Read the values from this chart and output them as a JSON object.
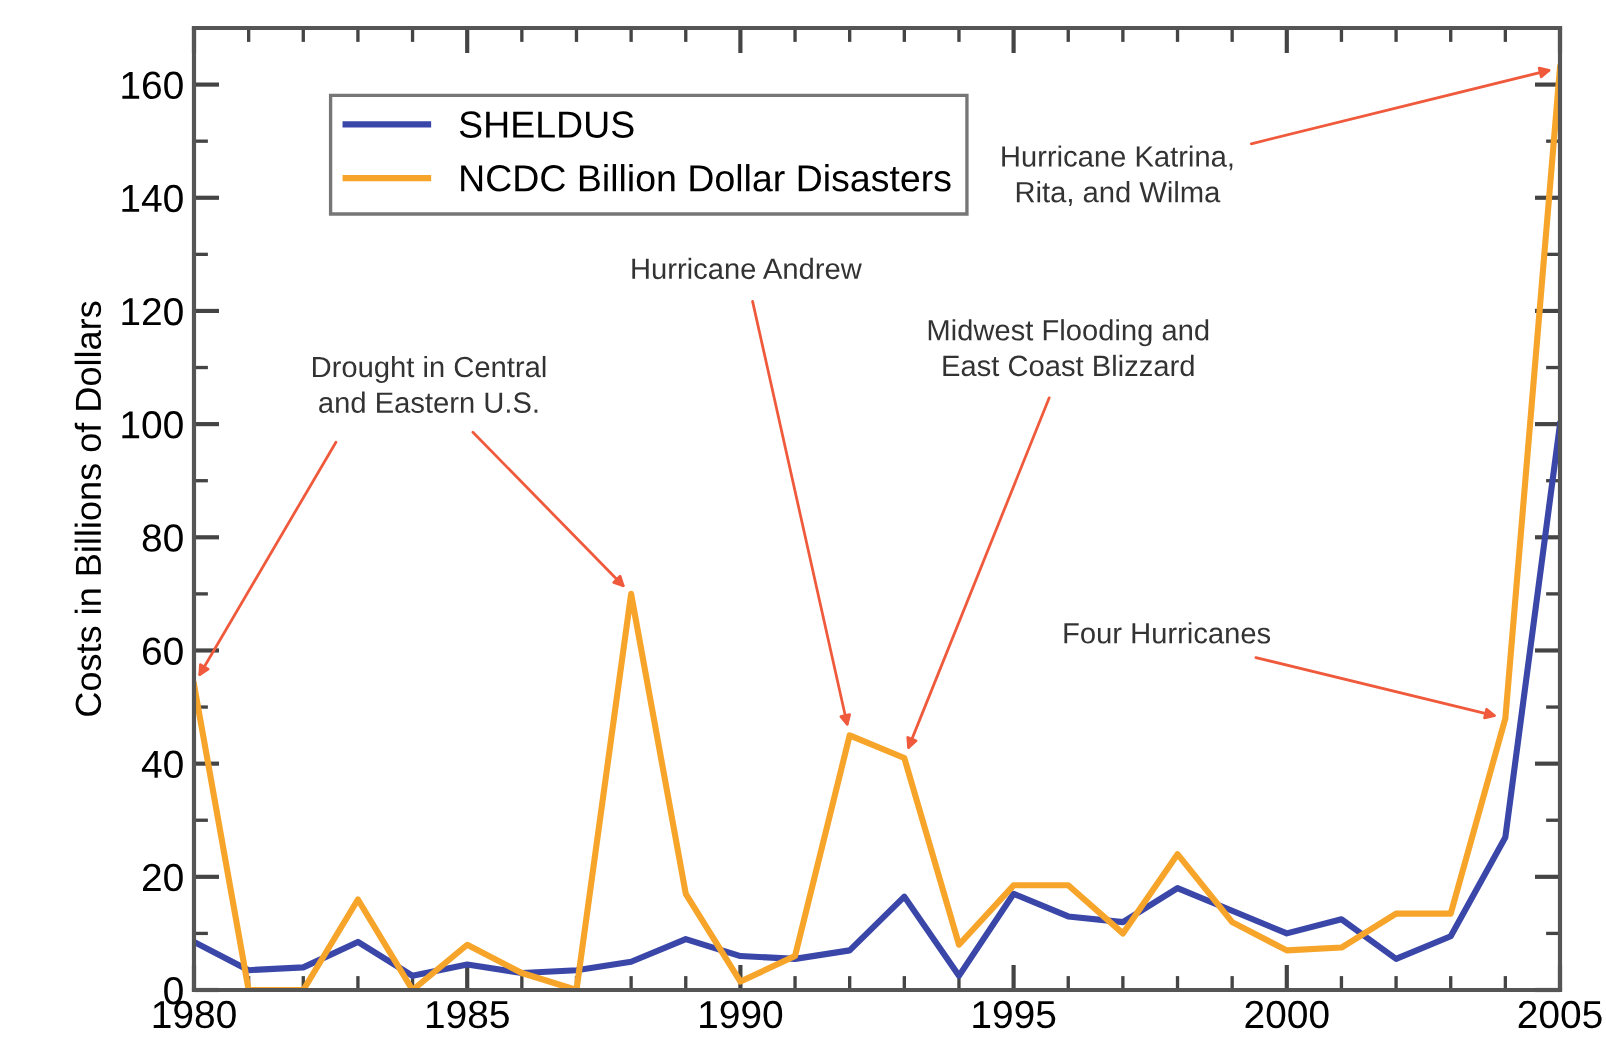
{
  "chart_data": {
    "type": "line",
    "ylabel": "Costs in Billions of Dollars",
    "x": [
      1980,
      1981,
      1982,
      1983,
      1984,
      1985,
      1986,
      1987,
      1988,
      1989,
      1990,
      1991,
      1992,
      1993,
      1994,
      1995,
      1996,
      1997,
      1998,
      1999,
      2000,
      2001,
      2002,
      2003,
      2004,
      2005
    ],
    "series": [
      {
        "name": "SHELDUS",
        "color": "#3a47a8",
        "values": [
          8.5,
          3.5,
          4,
          8.5,
          2.5,
          4.5,
          3,
          3.5,
          5,
          9,
          6,
          5.5,
          7,
          16.5,
          2.5,
          17,
          13,
          12,
          18,
          14,
          10,
          12.5,
          5.5,
          9.5,
          27,
          100
        ]
      },
      {
        "name": "NCDC Billion Dollar Disasters",
        "color": "#f7a52a",
        "values": [
          54,
          0,
          0,
          16,
          0,
          8,
          3,
          0,
          70,
          17,
          1.5,
          6,
          45,
          41,
          8,
          18.5,
          18.5,
          10,
          24,
          12,
          7,
          7.5,
          13.5,
          13.5,
          48,
          163
        ]
      }
    ],
    "xlim": [
      1980,
      2005
    ],
    "xticks": [
      1980,
      1985,
      1990,
      1995,
      2000,
      2005
    ],
    "ylim": [
      0,
      170
    ],
    "yticks": [
      0,
      20,
      40,
      60,
      80,
      100,
      120,
      140,
      160
    ],
    "legend": "top left",
    "grid": false,
    "annotations": [
      {
        "text": "Drought in Central\nand Eastern U.S.",
        "x": 1988,
        "y": 70
      },
      {
        "text": "Hurricane Andrew",
        "x": 1992,
        "y": 45
      },
      {
        "text": "Midwest Flooding and\nEast Coast Blizzard",
        "x": 1993,
        "y": 41
      },
      {
        "text": "Four Hurricanes",
        "x": 2004,
        "y": 48
      },
      {
        "text": "Hurricane Katrina,\nRita, and Wilma",
        "x": 2005,
        "y": 163
      }
    ]
  }
}
